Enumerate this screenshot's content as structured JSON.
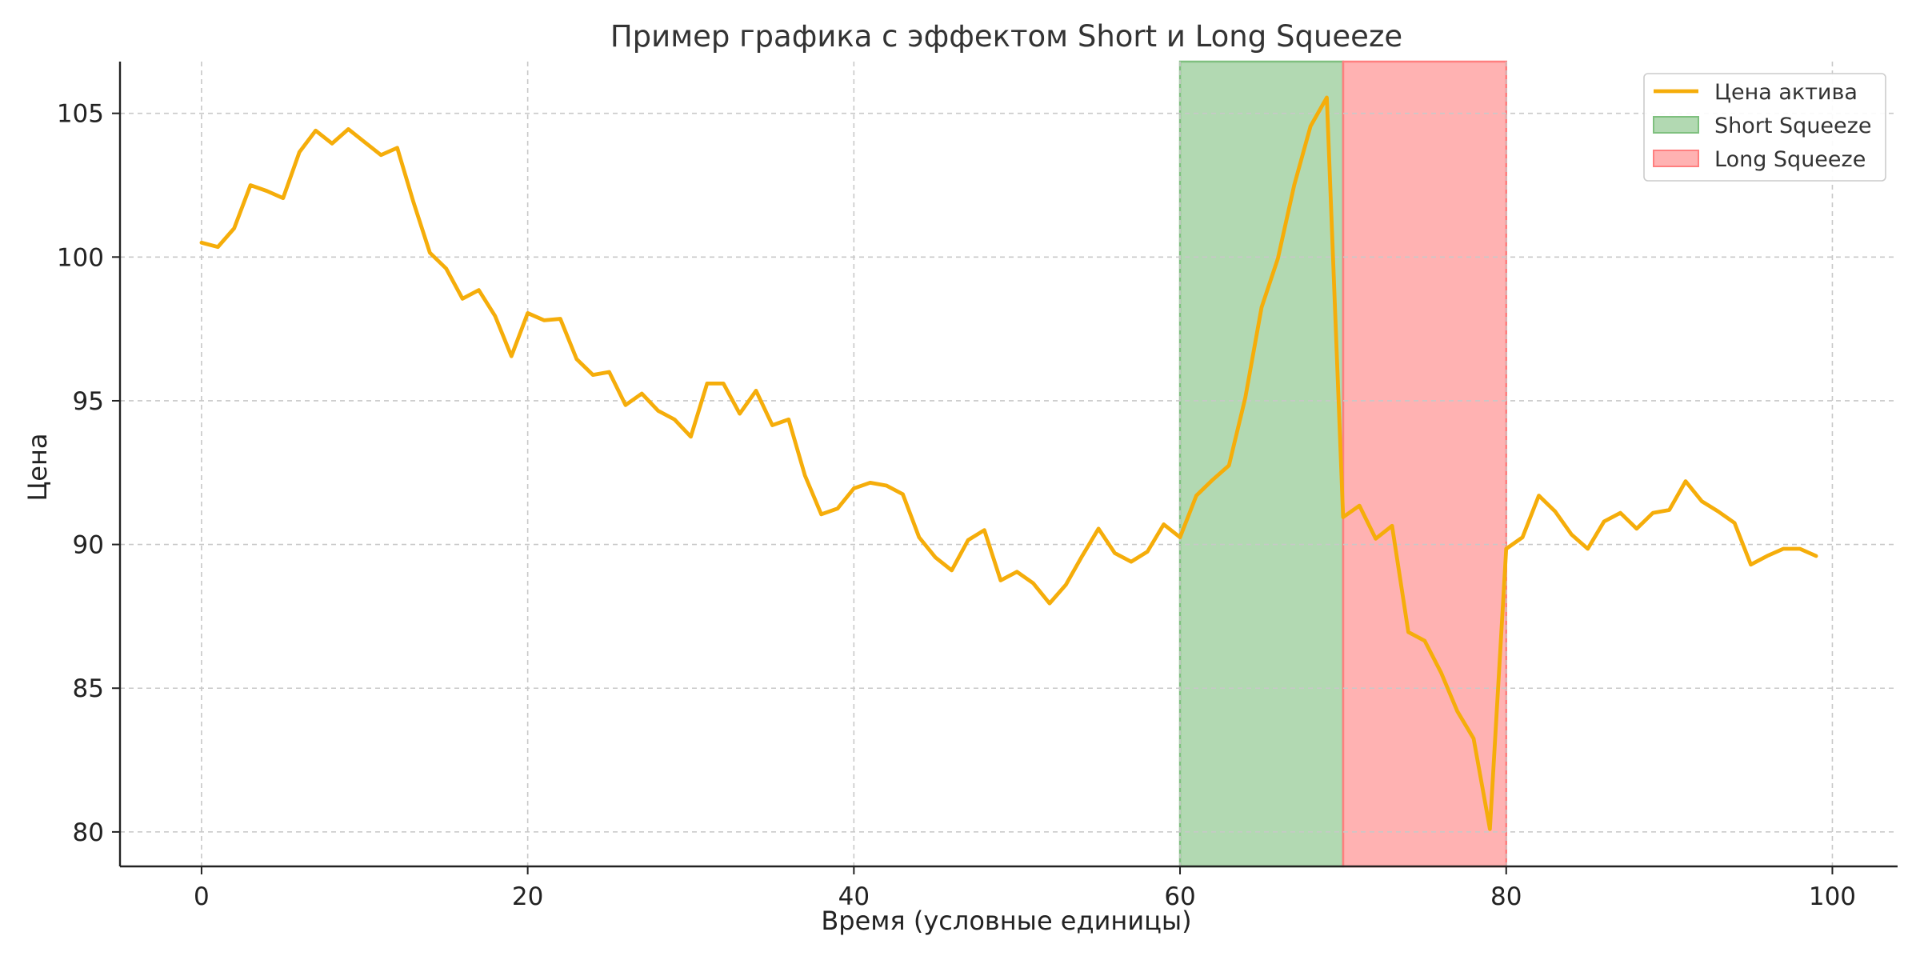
{
  "chart_data": {
    "type": "line",
    "title": "Пример графика с эффектом Short и Long Squeeze",
    "xlabel": "Время (условные единицы)",
    "ylabel": "Цена",
    "xlim": [
      -5,
      104
    ],
    "ylim": [
      78.8,
      106.8
    ],
    "xticks": [
      0,
      20,
      40,
      60,
      80,
      100
    ],
    "yticks": [
      80,
      85,
      90,
      95,
      100,
      105
    ],
    "grid": true,
    "legend_position": "top-right",
    "colors": {
      "line": "#f5ad0a",
      "short": "#7fc07f",
      "long": "#ff7f7f"
    },
    "regions": [
      {
        "name": "Short Squeeze",
        "x_start": 60,
        "x_end": 70,
        "color": "#7fc07f"
      },
      {
        "name": "Long Squeeze",
        "x_start": 70,
        "x_end": 80,
        "color": "#ff7f7f"
      }
    ],
    "series": [
      {
        "name": "Цена актива",
        "color": "#f5ad0a",
        "x": [
          0,
          1,
          2,
          3,
          4,
          5,
          6,
          7,
          8,
          9,
          10,
          11,
          12,
          13,
          14,
          15,
          16,
          17,
          18,
          19,
          20,
          21,
          22,
          23,
          24,
          25,
          26,
          27,
          28,
          29,
          30,
          31,
          32,
          33,
          34,
          35,
          36,
          37,
          38,
          39,
          40,
          41,
          42,
          43,
          44,
          45,
          46,
          47,
          48,
          49,
          50,
          51,
          52,
          53,
          54,
          55,
          56,
          57,
          58,
          59,
          60,
          61,
          62,
          63,
          64,
          65,
          66,
          67,
          68,
          69,
          70,
          71,
          72,
          73,
          74,
          75,
          76,
          77,
          78,
          79,
          80,
          81,
          82,
          83,
          84,
          85,
          86,
          87,
          88,
          89,
          90,
          91,
          92,
          93,
          94,
          95,
          96,
          97,
          98,
          99
        ],
        "values": [
          100.5,
          100.35,
          101.0,
          102.5,
          102.3,
          102.05,
          103.65,
          104.4,
          103.95,
          104.45,
          104.0,
          103.55,
          103.8,
          101.9,
          100.15,
          99.6,
          98.55,
          98.85,
          97.95,
          96.55,
          98.05,
          97.8,
          97.85,
          96.45,
          95.9,
          96.0,
          94.85,
          95.25,
          94.65,
          94.35,
          93.75,
          95.6,
          95.6,
          94.55,
          95.35,
          94.15,
          94.35,
          92.4,
          91.05,
          91.25,
          91.95,
          92.15,
          92.05,
          91.75,
          90.25,
          89.55,
          89.1,
          90.15,
          90.5,
          88.75,
          89.05,
          88.65,
          87.95,
          88.6,
          89.6,
          90.55,
          89.7,
          89.4,
          89.75,
          90.7,
          90.25,
          91.7,
          92.25,
          92.75,
          95.1,
          98.25,
          99.95,
          102.5,
          104.55,
          105.55,
          90.95,
          91.35,
          90.2,
          90.65,
          86.95,
          86.65,
          85.55,
          84.2,
          83.25,
          80.1,
          89.85,
          90.25,
          91.7,
          91.15,
          90.35,
          89.85,
          90.8,
          91.1,
          90.55,
          91.1,
          91.2,
          92.2,
          91.5,
          91.15,
          90.75,
          89.3,
          89.6,
          89.85,
          89.85,
          89.6
        ]
      }
    ]
  }
}
